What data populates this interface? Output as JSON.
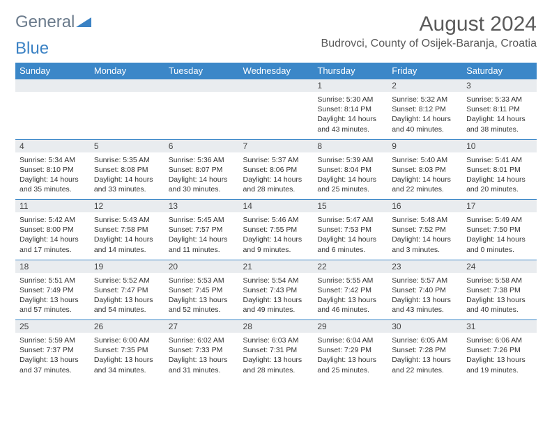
{
  "logo": {
    "text1": "General",
    "text2": "Blue"
  },
  "title": "August 2024",
  "location": "Budrovci, County of Osijek-Baranja, Croatia",
  "colors": {
    "header_bg": "#3b87c8",
    "header_text": "#ffffff",
    "daynum_bg": "#e9ecef",
    "border": "#3b87c8",
    "logo_gray": "#6b7b8c",
    "logo_blue": "#3b82c4"
  },
  "columns": [
    "Sunday",
    "Monday",
    "Tuesday",
    "Wednesday",
    "Thursday",
    "Friday",
    "Saturday"
  ],
  "weeks": [
    [
      {
        "n": "",
        "sunrise": "",
        "sunset": "",
        "daylight": ""
      },
      {
        "n": "",
        "sunrise": "",
        "sunset": "",
        "daylight": ""
      },
      {
        "n": "",
        "sunrise": "",
        "sunset": "",
        "daylight": ""
      },
      {
        "n": "",
        "sunrise": "",
        "sunset": "",
        "daylight": ""
      },
      {
        "n": "1",
        "sunrise": "Sunrise: 5:30 AM",
        "sunset": "Sunset: 8:14 PM",
        "daylight": "Daylight: 14 hours and 43 minutes."
      },
      {
        "n": "2",
        "sunrise": "Sunrise: 5:32 AM",
        "sunset": "Sunset: 8:12 PM",
        "daylight": "Daylight: 14 hours and 40 minutes."
      },
      {
        "n": "3",
        "sunrise": "Sunrise: 5:33 AM",
        "sunset": "Sunset: 8:11 PM",
        "daylight": "Daylight: 14 hours and 38 minutes."
      }
    ],
    [
      {
        "n": "4",
        "sunrise": "Sunrise: 5:34 AM",
        "sunset": "Sunset: 8:10 PM",
        "daylight": "Daylight: 14 hours and 35 minutes."
      },
      {
        "n": "5",
        "sunrise": "Sunrise: 5:35 AM",
        "sunset": "Sunset: 8:08 PM",
        "daylight": "Daylight: 14 hours and 33 minutes."
      },
      {
        "n": "6",
        "sunrise": "Sunrise: 5:36 AM",
        "sunset": "Sunset: 8:07 PM",
        "daylight": "Daylight: 14 hours and 30 minutes."
      },
      {
        "n": "7",
        "sunrise": "Sunrise: 5:37 AM",
        "sunset": "Sunset: 8:06 PM",
        "daylight": "Daylight: 14 hours and 28 minutes."
      },
      {
        "n": "8",
        "sunrise": "Sunrise: 5:39 AM",
        "sunset": "Sunset: 8:04 PM",
        "daylight": "Daylight: 14 hours and 25 minutes."
      },
      {
        "n": "9",
        "sunrise": "Sunrise: 5:40 AM",
        "sunset": "Sunset: 8:03 PM",
        "daylight": "Daylight: 14 hours and 22 minutes."
      },
      {
        "n": "10",
        "sunrise": "Sunrise: 5:41 AM",
        "sunset": "Sunset: 8:01 PM",
        "daylight": "Daylight: 14 hours and 20 minutes."
      }
    ],
    [
      {
        "n": "11",
        "sunrise": "Sunrise: 5:42 AM",
        "sunset": "Sunset: 8:00 PM",
        "daylight": "Daylight: 14 hours and 17 minutes."
      },
      {
        "n": "12",
        "sunrise": "Sunrise: 5:43 AM",
        "sunset": "Sunset: 7:58 PM",
        "daylight": "Daylight: 14 hours and 14 minutes."
      },
      {
        "n": "13",
        "sunrise": "Sunrise: 5:45 AM",
        "sunset": "Sunset: 7:57 PM",
        "daylight": "Daylight: 14 hours and 11 minutes."
      },
      {
        "n": "14",
        "sunrise": "Sunrise: 5:46 AM",
        "sunset": "Sunset: 7:55 PM",
        "daylight": "Daylight: 14 hours and 9 minutes."
      },
      {
        "n": "15",
        "sunrise": "Sunrise: 5:47 AM",
        "sunset": "Sunset: 7:53 PM",
        "daylight": "Daylight: 14 hours and 6 minutes."
      },
      {
        "n": "16",
        "sunrise": "Sunrise: 5:48 AM",
        "sunset": "Sunset: 7:52 PM",
        "daylight": "Daylight: 14 hours and 3 minutes."
      },
      {
        "n": "17",
        "sunrise": "Sunrise: 5:49 AM",
        "sunset": "Sunset: 7:50 PM",
        "daylight": "Daylight: 14 hours and 0 minutes."
      }
    ],
    [
      {
        "n": "18",
        "sunrise": "Sunrise: 5:51 AM",
        "sunset": "Sunset: 7:49 PM",
        "daylight": "Daylight: 13 hours and 57 minutes."
      },
      {
        "n": "19",
        "sunrise": "Sunrise: 5:52 AM",
        "sunset": "Sunset: 7:47 PM",
        "daylight": "Daylight: 13 hours and 54 minutes."
      },
      {
        "n": "20",
        "sunrise": "Sunrise: 5:53 AM",
        "sunset": "Sunset: 7:45 PM",
        "daylight": "Daylight: 13 hours and 52 minutes."
      },
      {
        "n": "21",
        "sunrise": "Sunrise: 5:54 AM",
        "sunset": "Sunset: 7:43 PM",
        "daylight": "Daylight: 13 hours and 49 minutes."
      },
      {
        "n": "22",
        "sunrise": "Sunrise: 5:55 AM",
        "sunset": "Sunset: 7:42 PM",
        "daylight": "Daylight: 13 hours and 46 minutes."
      },
      {
        "n": "23",
        "sunrise": "Sunrise: 5:57 AM",
        "sunset": "Sunset: 7:40 PM",
        "daylight": "Daylight: 13 hours and 43 minutes."
      },
      {
        "n": "24",
        "sunrise": "Sunrise: 5:58 AM",
        "sunset": "Sunset: 7:38 PM",
        "daylight": "Daylight: 13 hours and 40 minutes."
      }
    ],
    [
      {
        "n": "25",
        "sunrise": "Sunrise: 5:59 AM",
        "sunset": "Sunset: 7:37 PM",
        "daylight": "Daylight: 13 hours and 37 minutes."
      },
      {
        "n": "26",
        "sunrise": "Sunrise: 6:00 AM",
        "sunset": "Sunset: 7:35 PM",
        "daylight": "Daylight: 13 hours and 34 minutes."
      },
      {
        "n": "27",
        "sunrise": "Sunrise: 6:02 AM",
        "sunset": "Sunset: 7:33 PM",
        "daylight": "Daylight: 13 hours and 31 minutes."
      },
      {
        "n": "28",
        "sunrise": "Sunrise: 6:03 AM",
        "sunset": "Sunset: 7:31 PM",
        "daylight": "Daylight: 13 hours and 28 minutes."
      },
      {
        "n": "29",
        "sunrise": "Sunrise: 6:04 AM",
        "sunset": "Sunset: 7:29 PM",
        "daylight": "Daylight: 13 hours and 25 minutes."
      },
      {
        "n": "30",
        "sunrise": "Sunrise: 6:05 AM",
        "sunset": "Sunset: 7:28 PM",
        "daylight": "Daylight: 13 hours and 22 minutes."
      },
      {
        "n": "31",
        "sunrise": "Sunrise: 6:06 AM",
        "sunset": "Sunset: 7:26 PM",
        "daylight": "Daylight: 13 hours and 19 minutes."
      }
    ]
  ]
}
